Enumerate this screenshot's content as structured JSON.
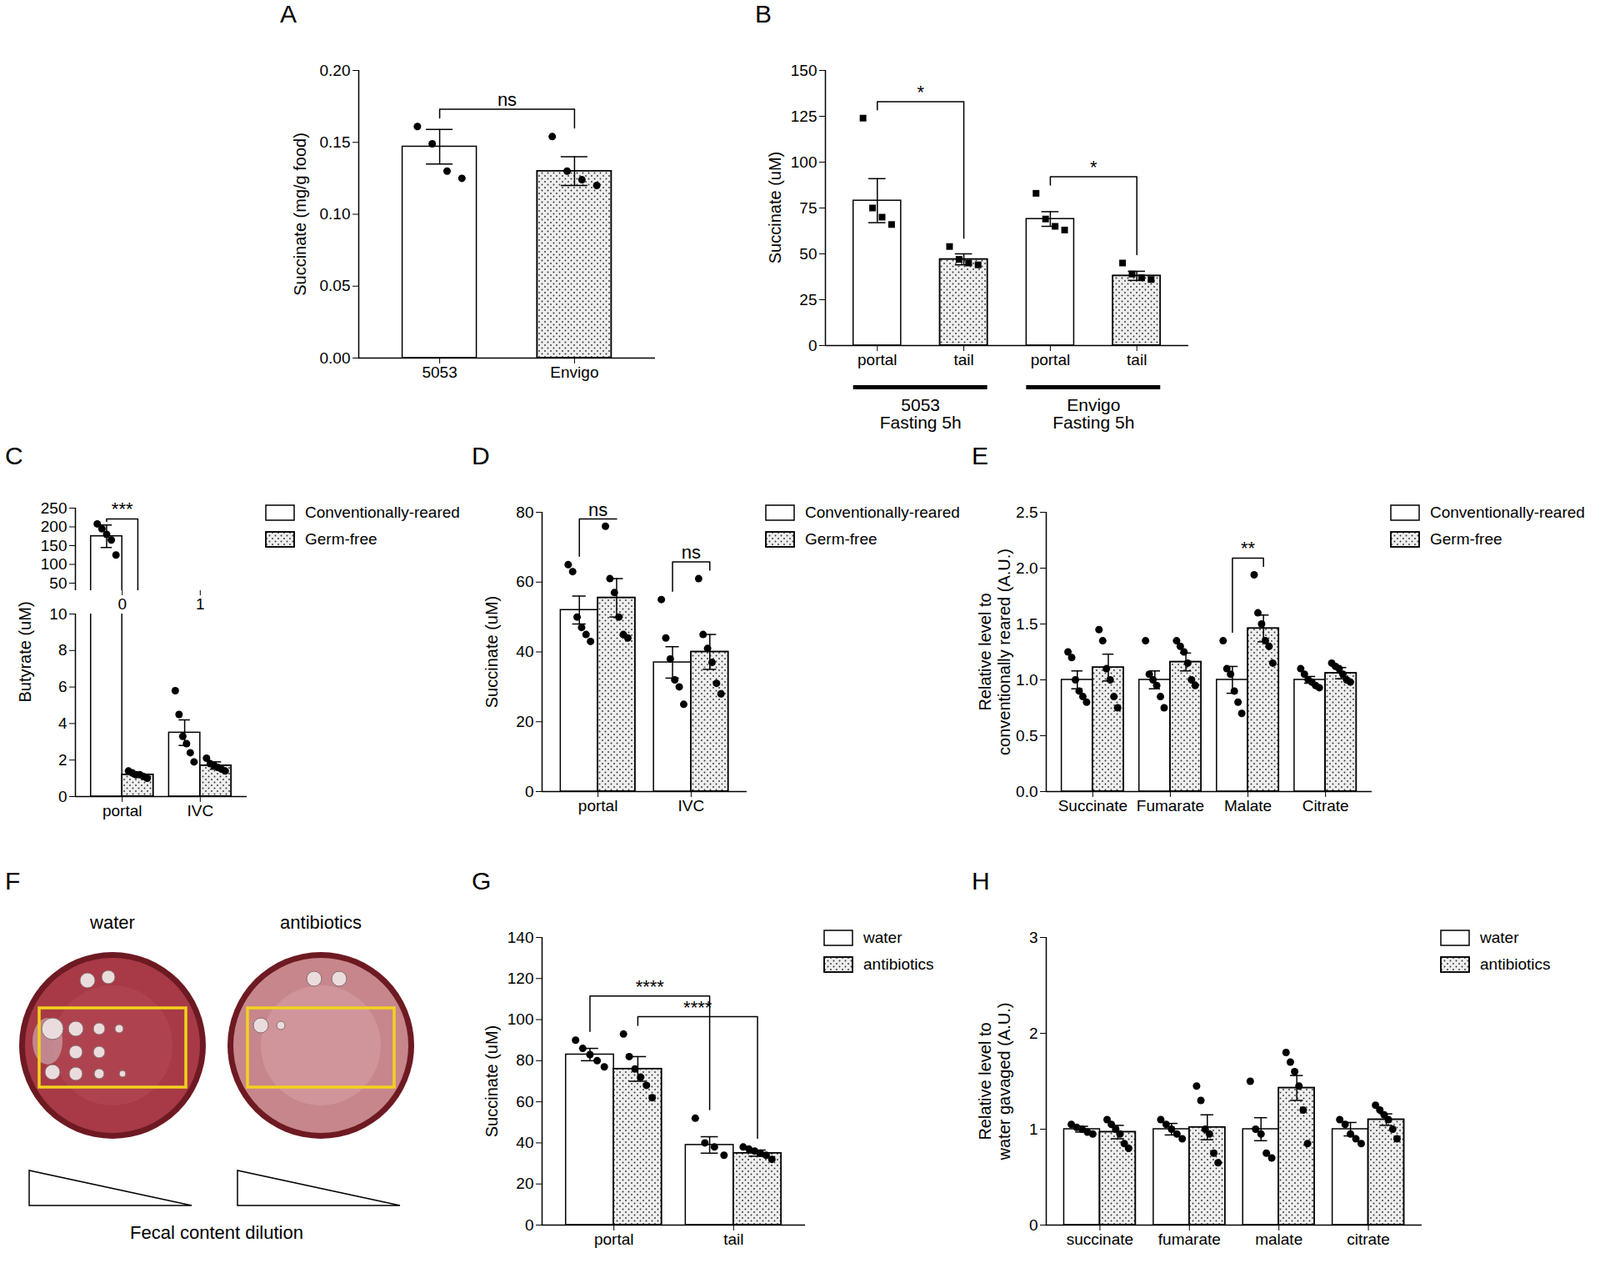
{
  "chart_data": [
    {
      "title": "A",
      "type": "bar",
      "categories": [
        "5053",
        "Envigo"
      ],
      "ylabel": "Succinate (mg/g food)",
      "ylim": [
        0,
        0.2
      ],
      "yticks": [
        {
          "value": 0,
          "label": "0.00"
        },
        0.05,
        {
          "value": 0.1,
          "label": "0.10"
        },
        0.15,
        {
          "value": 0.2,
          "label": "0.20"
        }
      ],
      "series": [
        {
          "values": [
            0.147,
            0.13
          ],
          "errors": [
            0.012,
            0.01
          ],
          "points": [
            [
              0.161,
              0.149,
              0.13,
              0.125
            ],
            [
              0.154,
              0.13,
              0.124,
              0.12
            ]
          ],
          "colors": [
            "#ffffff",
            "#eeeeee"
          ],
          "marker": "circle"
        }
      ],
      "annotations": [
        {
          "label": "ns",
          "from": [
            0,
            0
          ],
          "to": [
            1,
            0
          ]
        }
      ]
    },
    {
      "title": "B",
      "type": "bar",
      "categories": [
        "portal",
        "tail",
        "portal",
        "tail"
      ],
      "ylabel": "Succinate (uM)",
      "ylim": [
        0,
        150
      ],
      "yticks": [
        0,
        25,
        50,
        75,
        100,
        125,
        150
      ],
      "groups": [
        {
          "label": "5053\nFasting 5h",
          "categories": [
            0,
            1
          ]
        },
        {
          "label": "Envigo\nFasting 5h",
          "categories": [
            2,
            3
          ]
        }
      ],
      "series": [
        {
          "values": [
            79,
            47,
            69,
            38
          ],
          "errors": [
            12,
            3,
            4,
            2.5
          ],
          "points": [
            [
              124,
              75,
              70,
              66
            ],
            [
              54,
              47,
              45,
              44
            ],
            [
              83,
              69,
              65,
              63
            ],
            [
              45,
              39,
              37,
              36
            ]
          ],
          "colors": [
            "#ffffff",
            "#eeeeee",
            "#ffffff",
            "#eeeeee"
          ],
          "marker": "square"
        }
      ],
      "annotations": [
        {
          "label": "*",
          "from": [
            0,
            0
          ],
          "to": [
            1,
            0
          ]
        },
        {
          "label": "*",
          "from": [
            2,
            0
          ],
          "to": [
            3,
            0
          ]
        }
      ]
    },
    {
      "title": "C",
      "type": "bar",
      "categories": [
        "portal",
        "IVC"
      ],
      "ylabel": "Butyrate (uM)",
      "ylim": [
        0,
        250
      ],
      "ybreak": [
        10,
        30
      ],
      "yticks": [
        0,
        2,
        4,
        6,
        8,
        10,
        50,
        100,
        150,
        200,
        250
      ],
      "legend": "top-right",
      "series": [
        {
          "name": "Conventionally-reared",
          "color": "#ffffff",
          "marker": "circle",
          "values": [
            175,
            3.5
          ],
          "errors": [
            30,
            0.7
          ],
          "points": [
            [
              208,
              195,
              180,
              165,
              125
            ],
            [
              5.8,
              4.5,
              3.3,
              2.9,
              2.4,
              1.9
            ]
          ]
        },
        {
          "name": "Germ-free",
          "color": "#eeeeee",
          "marker": "circle",
          "values": [
            1.2,
            1.7
          ],
          "errors": [
            0.1,
            0.2
          ],
          "points": [
            [
              1.4,
              1.3,
              1.2,
              1.2,
              1.1,
              1.0
            ],
            [
              2.1,
              1.8,
              1.7,
              1.6,
              1.5,
              1.4
            ]
          ]
        }
      ],
      "annotations": [
        {
          "label": "***",
          "from": [
            0,
            0
          ],
          "to": [
            0,
            1
          ]
        }
      ]
    },
    {
      "title": "D",
      "type": "bar",
      "categories": [
        "portal",
        "IVC"
      ],
      "ylabel": "Succinate (uM)",
      "ylim": [
        0,
        80
      ],
      "yticks": [
        0,
        20,
        40,
        60,
        80
      ],
      "legend": "top-right",
      "series": [
        {
          "name": "Conventionally-reared",
          "color": "#ffffff",
          "marker": "circle",
          "values": [
            52,
            37
          ],
          "errors": [
            4,
            4.5
          ],
          "points": [
            [
              65,
              63,
              50,
              47,
              45,
              43
            ],
            [
              55,
              44,
              38,
              32,
              30,
              25
            ]
          ]
        },
        {
          "name": "Germ-free",
          "color": "#eeeeee",
          "marker": "circle",
          "values": [
            55.5,
            40
          ],
          "errors": [
            5.5,
            5
          ],
          "points": [
            [
              76,
              61,
              57,
              50,
              45,
              44
            ],
            [
              61,
              45,
              41,
              37,
              31,
              28
            ]
          ]
        }
      ],
      "annotations": [
        {
          "label": "ns",
          "from": [
            0,
            0
          ],
          "to": [
            0,
            1
          ]
        },
        {
          "label": "ns",
          "from": [
            1,
            0
          ],
          "to": [
            1,
            1
          ]
        }
      ]
    },
    {
      "title": "E",
      "type": "bar",
      "categories": [
        "Succinate",
        "Fumarate",
        "Malate",
        "Citrate"
      ],
      "ylabel": "Relative level to\nconventionally reared (A.U.)",
      "ylim": [
        0,
        2.5
      ],
      "yticks": [
        {
          "value": 0,
          "label": "0.0"
        },
        0.5,
        {
          "value": 1,
          "label": "1.0"
        },
        1.5,
        {
          "value": 2,
          "label": "2.0"
        },
        2.5
      ],
      "legend": "top-right",
      "series": [
        {
          "name": "Conventionally-reared",
          "color": "#ffffff",
          "marker": "circle",
          "values": [
            1,
            1,
            1,
            1
          ],
          "errors": [
            0.08,
            0.08,
            0.12,
            0.03
          ],
          "points": [
            [
              1.25,
              1.2,
              1.0,
              0.9,
              0.85,
              0.8
            ],
            [
              1.35,
              1.05,
              1.0,
              0.95,
              0.85,
              0.75
            ],
            [
              1.35,
              1.1,
              1.05,
              0.9,
              0.8,
              0.7
            ],
            [
              1.1,
              1.05,
              1.0,
              0.98,
              0.95,
              0.93
            ]
          ]
        },
        {
          "name": "Germ-free",
          "color": "#eeeeee",
          "marker": "circle",
          "values": [
            1.11,
            1.16,
            1.46,
            1.06
          ],
          "errors": [
            0.12,
            0.08,
            0.12,
            0.05
          ],
          "points": [
            [
              1.45,
              1.35,
              1.1,
              1.0,
              0.85,
              0.75
            ],
            [
              1.35,
              1.3,
              1.25,
              1.15,
              1.0,
              0.95
            ],
            [
              1.94,
              1.6,
              1.5,
              1.35,
              1.3,
              1.15
            ],
            [
              1.15,
              1.12,
              1.1,
              1.05,
              1.0,
              0.98
            ]
          ]
        }
      ],
      "annotations": [
        {
          "label": "**",
          "from": [
            2,
            0
          ],
          "to": [
            2,
            1
          ]
        }
      ]
    },
    {
      "title": "F",
      "type": "image",
      "labels": [
        "water",
        "antibiotics"
      ],
      "xlabel": "Fecal content dilution"
    },
    {
      "title": "G",
      "type": "bar",
      "categories": [
        "portal",
        "tail"
      ],
      "ylabel": "Succinate (uM)",
      "ylim": [
        0,
        140
      ],
      "yticks": [
        0,
        20,
        40,
        60,
        80,
        100,
        120,
        140
      ],
      "legend": "top-right",
      "series": [
        {
          "name": "water",
          "color": "#ffffff",
          "marker": "circle",
          "values": [
            83,
            39
          ],
          "errors": [
            3,
            4
          ],
          "points": [
            [
              90,
              86,
              83,
              80,
              77
            ],
            [
              52,
              40,
              38,
              34
            ]
          ]
        },
        {
          "name": "antibiotics",
          "color": "#eeeeee",
          "marker": "circle",
          "values": [
            76,
            35
          ],
          "errors": [
            6,
            1.5
          ],
          "points": [
            [
              93,
              82,
              76,
              72,
              68,
              62
            ],
            [
              38,
              37,
              36,
              35,
              34,
              32
            ]
          ]
        }
      ],
      "annotations": [
        {
          "label": "****",
          "from": [
            0,
            0
          ],
          "to": [
            1,
            0
          ]
        },
        {
          "label": "****",
          "from": [
            0,
            1
          ],
          "to": [
            1,
            1
          ]
        }
      ]
    },
    {
      "title": "H",
      "type": "bar",
      "categories": [
        "succinate",
        "fumarate",
        "malate",
        "citrate"
      ],
      "ylabel": "Relative level to\nwater gavaged (A.U.)",
      "ylim": [
        0,
        3
      ],
      "yticks": [
        0,
        1,
        2,
        3
      ],
      "legend": "top-right",
      "series": [
        {
          "name": "water",
          "color": "#ffffff",
          "marker": "circle",
          "values": [
            1,
            1,
            1,
            1
          ],
          "errors": [
            0.03,
            0.06,
            0.12,
            0.07
          ],
          "points": [
            [
              1.05,
              1.02,
              1.0,
              0.97,
              0.95
            ],
            [
              1.1,
              1.05,
              1.0,
              0.95,
              0.9
            ],
            [
              1.5,
              1.0,
              0.95,
              0.75,
              0.7
            ],
            [
              1.1,
              1.05,
              0.95,
              0.9,
              0.85
            ]
          ]
        },
        {
          "name": "antibiotics",
          "color": "#eeeeee",
          "marker": "circle",
          "values": [
            0.97,
            1.02,
            1.43,
            1.1
          ],
          "errors": [
            0.07,
            0.13,
            0.13,
            0.06
          ],
          "points": [
            [
              1.1,
              1.05,
              1.0,
              0.95,
              0.85,
              0.8
            ],
            [
              1.45,
              1.3,
              1.0,
              0.95,
              0.75,
              0.65
            ],
            [
              1.8,
              1.7,
              1.6,
              1.45,
              1.2,
              0.85
            ],
            [
              1.25,
              1.2,
              1.15,
              1.1,
              1.0,
              0.9
            ]
          ]
        }
      ],
      "annotations": []
    }
  ]
}
